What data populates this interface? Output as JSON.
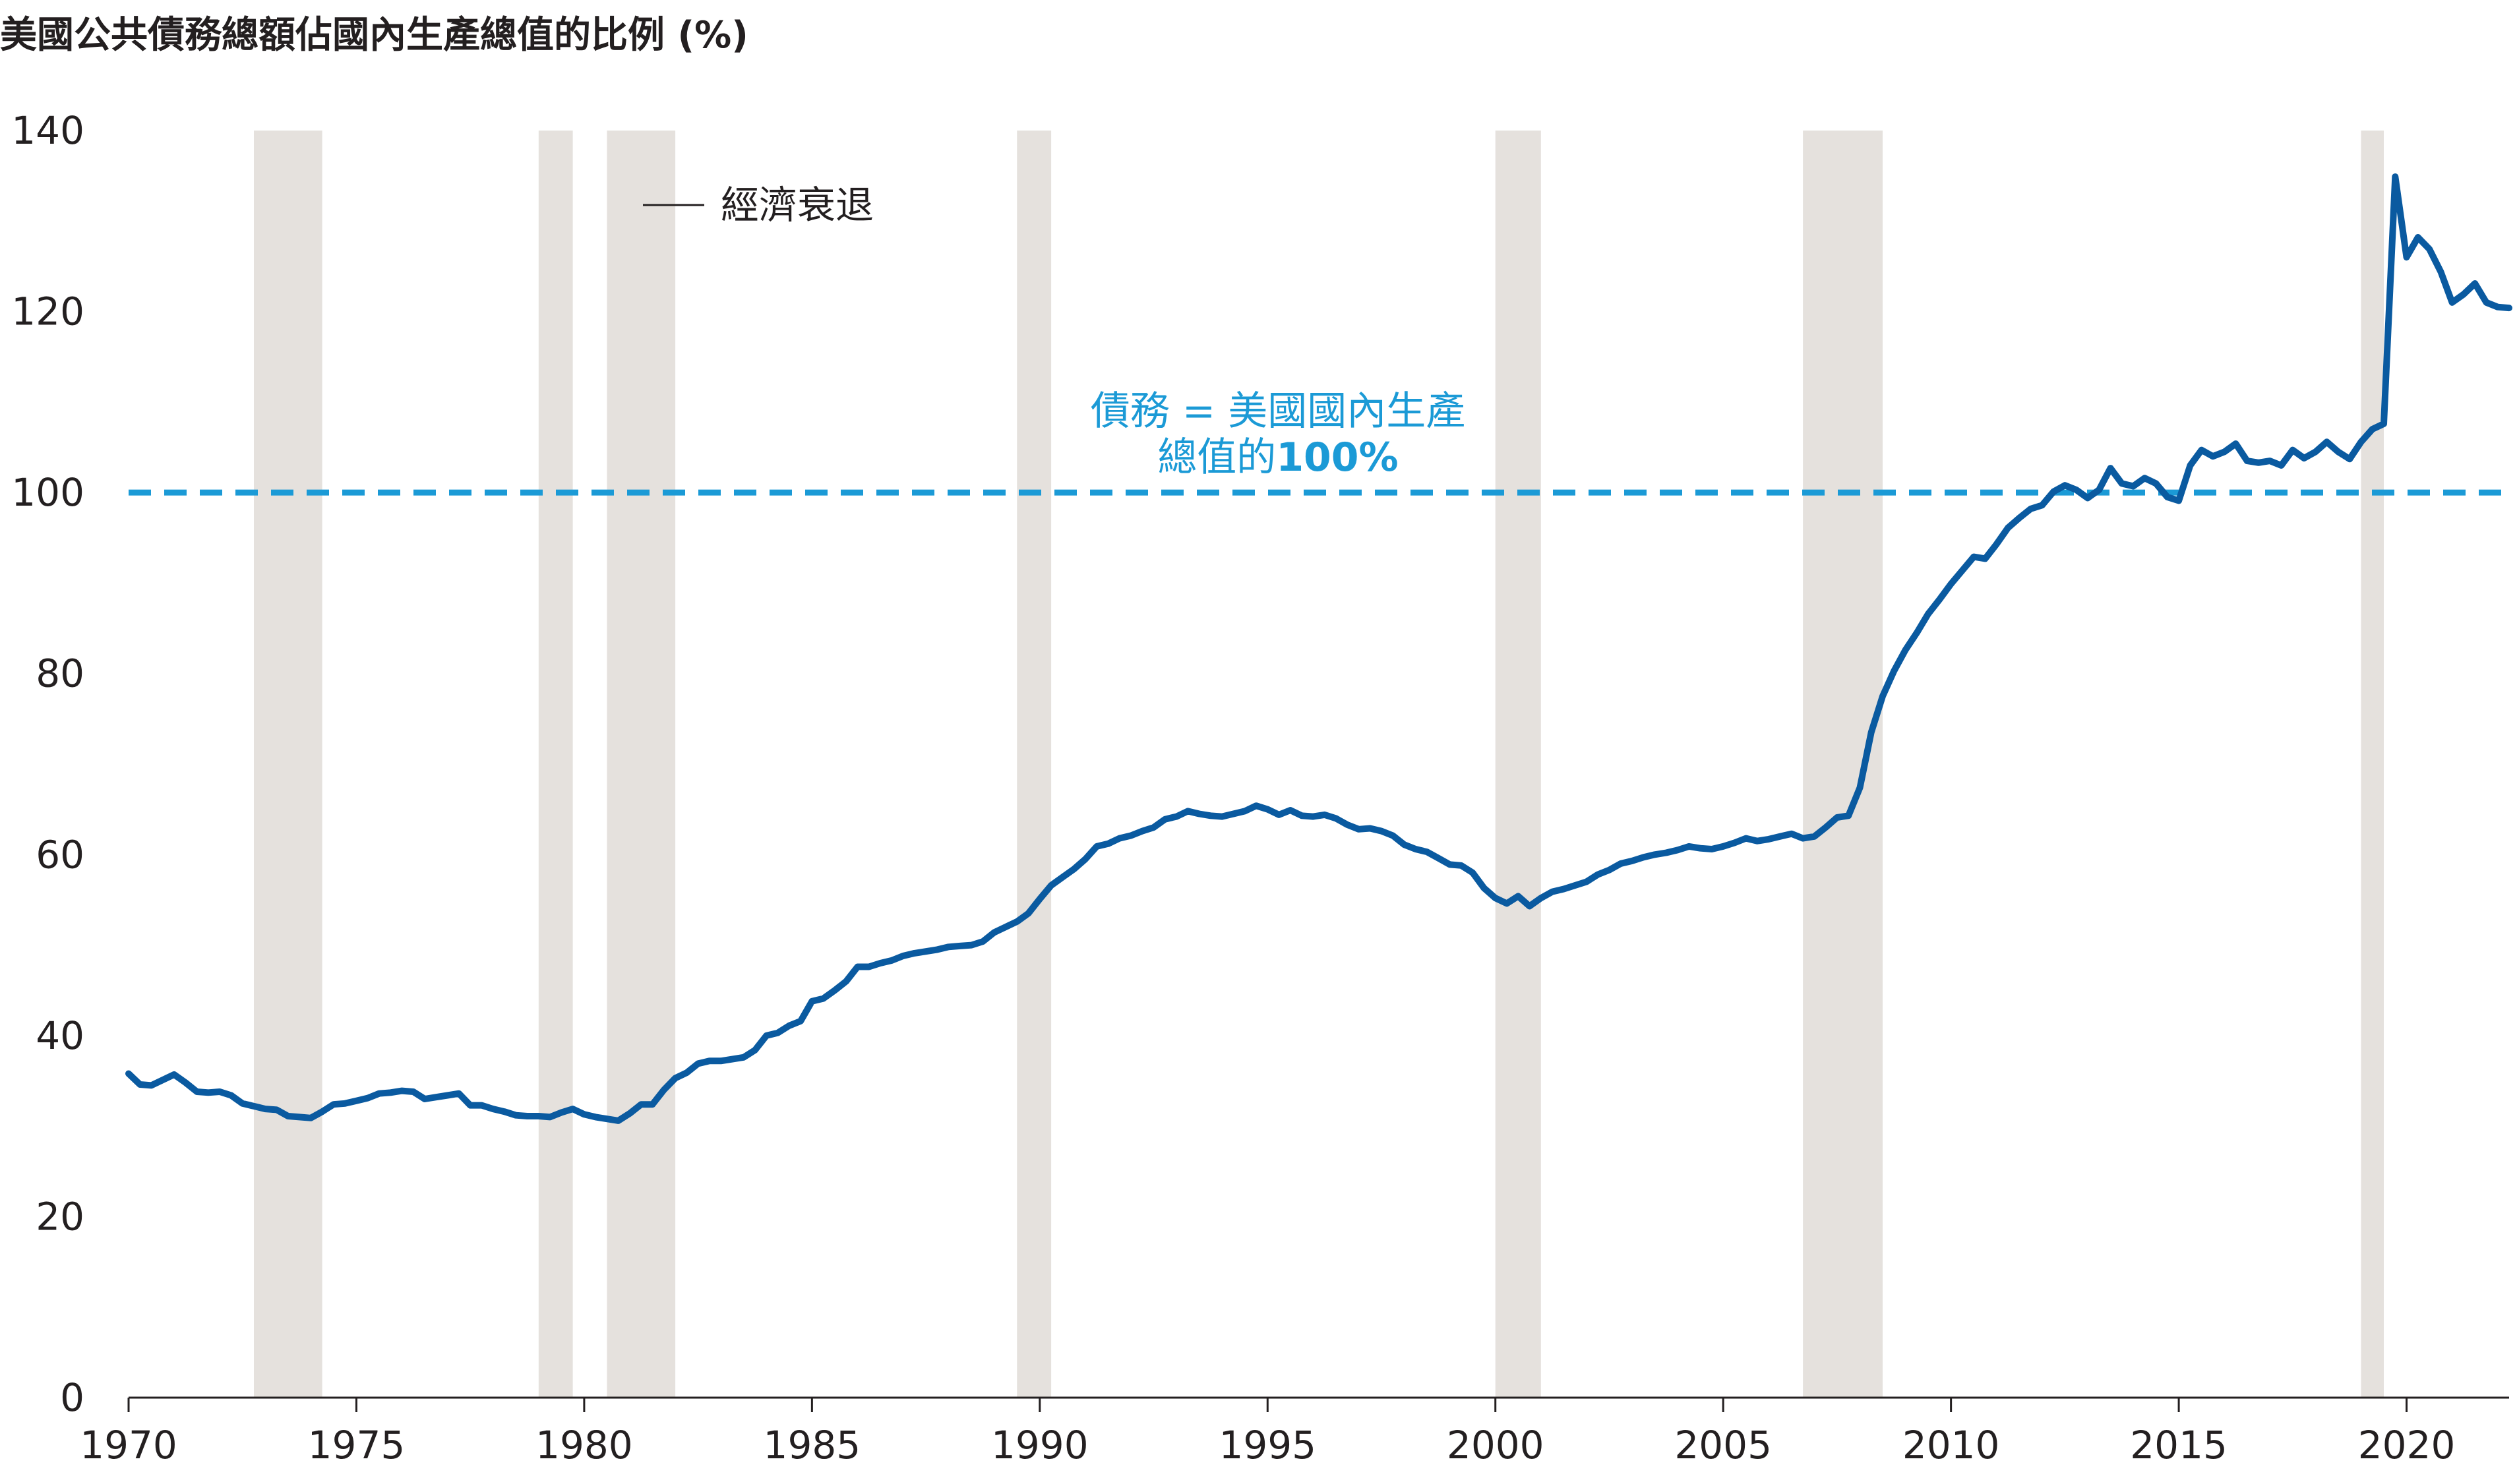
{
  "chart_data": {
    "type": "line",
    "title": "美國公共債務總額佔國內生產總值的比例 (%)",
    "xlabel": "",
    "ylabel": "",
    "xlim": [
      1970,
      2022.25
    ],
    "ylim": [
      0,
      140
    ],
    "yticks": [
      0,
      20,
      40,
      60,
      80,
      100,
      120,
      140
    ],
    "xticks": [
      1970,
      1975,
      1980,
      1985,
      1990,
      1995,
      2000,
      2005,
      2010,
      2015,
      2020
    ],
    "legend": {
      "position": "top-left",
      "entries": [
        {
          "label": "經濟衰退",
          "marker": "line"
        }
      ]
    },
    "recessions": [
      [
        1972.75,
        1974.25
      ],
      [
        1979.0,
        1979.75
      ],
      [
        1980.5,
        1982.0
      ],
      [
        1989.5,
        1990.25
      ],
      [
        2000.0,
        2001.0
      ],
      [
        2006.75,
        2008.5
      ],
      [
        2019.0,
        2019.5
      ]
    ],
    "reference_line": {
      "y": 100,
      "color": "#1b9ad6",
      "label_line1": "債務 = 美國國內生產",
      "label_line2_normal": "總值的",
      "label_line2_bold": "100%"
    },
    "series": [
      {
        "color": "#0a5aa0",
        "x": [
          1970.0,
          1970.25,
          1970.5,
          1970.75,
          1971.0,
          1971.25,
          1971.5,
          1971.75,
          1972.0,
          1972.25,
          1972.5,
          1972.75,
          1973.0,
          1973.25,
          1973.5,
          1973.75,
          1974.0,
          1974.25,
          1974.5,
          1974.75,
          1975.0,
          1975.25,
          1975.5,
          1975.75,
          1976.0,
          1976.25,
          1976.5,
          1976.75,
          1977.0,
          1977.25,
          1977.5,
          1977.75,
          1978.0,
          1978.25,
          1978.5,
          1978.75,
          1979.0,
          1979.25,
          1979.5,
          1979.75,
          1980.0,
          1980.25,
          1980.5,
          1980.75,
          1981.0,
          1981.25,
          1981.5,
          1981.75,
          1982.0,
          1982.25,
          1982.5,
          1982.75,
          1983.0,
          1983.25,
          1983.5,
          1983.75,
          1984.0,
          1984.25,
          1984.5,
          1984.75,
          1985.0,
          1985.25,
          1985.5,
          1985.75,
          1986.0,
          1986.25,
          1986.5,
          1986.75,
          1987.0,
          1987.25,
          1987.5,
          1987.75,
          1988.0,
          1988.25,
          1988.5,
          1988.75,
          1989.0,
          1989.25,
          1989.5,
          1989.75,
          1990.0,
          1990.25,
          1990.5,
          1990.75,
          1991.0,
          1991.25,
          1991.5,
          1991.75,
          1992.0,
          1992.25,
          1992.5,
          1992.75,
          1993.0,
          1993.25,
          1993.5,
          1993.75,
          1994.0,
          1994.25,
          1994.5,
          1994.75,
          1995.0,
          1995.25,
          1995.5,
          1995.75,
          1996.0,
          1996.25,
          1996.5,
          1996.75,
          1997.0,
          1997.25,
          1997.5,
          1997.75,
          1998.0,
          1998.25,
          1998.5,
          1998.75,
          1999.0,
          1999.25,
          1999.5,
          1999.75,
          2000.0,
          2000.25,
          2000.5,
          2000.75,
          2001.0,
          2001.25,
          2001.5,
          2001.75,
          2002.0,
          2002.25,
          2002.5,
          2002.75,
          2003.0,
          2003.25,
          2003.5,
          2003.75,
          2004.0,
          2004.25,
          2004.5,
          2004.75,
          2005.0,
          2005.25,
          2005.5,
          2005.75,
          2006.0,
          2006.25,
          2006.5,
          2006.75,
          2007.0,
          2007.25,
          2007.5,
          2007.75,
          2008.0,
          2008.25,
          2008.5,
          2008.75,
          2009.0,
          2009.25,
          2009.5,
          2009.75,
          2010.0,
          2010.25,
          2010.5,
          2010.75,
          2011.0,
          2011.25,
          2011.5,
          2011.75,
          2012.0,
          2012.25,
          2012.5,
          2012.75,
          2013.0,
          2013.25,
          2013.5,
          2013.75,
          2014.0,
          2014.25,
          2014.5,
          2014.75,
          2015.0,
          2015.25,
          2015.5,
          2015.75,
          2016.0,
          2016.25,
          2016.5,
          2016.75,
          2017.0,
          2017.25,
          2017.5,
          2017.75,
          2018.0,
          2018.25,
          2018.5,
          2018.75,
          2019.0,
          2019.25,
          2019.5,
          2019.75,
          2020.0,
          2020.25,
          2020.5,
          2020.75,
          2021.0,
          2021.25,
          2021.5,
          2021.75,
          2022.0,
          2022.25
        ],
        "y": [
          35.8,
          34.6,
          34.5,
          35.1,
          35.7,
          34.8,
          33.8,
          33.7,
          33.8,
          33.4,
          32.5,
          32.2,
          31.9,
          31.8,
          31.1,
          31.0,
          30.9,
          31.6,
          32.4,
          32.5,
          32.8,
          33.1,
          33.6,
          33.7,
          33.9,
          33.8,
          33.0,
          33.2,
          33.4,
          33.6,
          32.3,
          32.3,
          31.9,
          31.6,
          31.2,
          31.1,
          31.1,
          31.0,
          31.5,
          31.9,
          31.3,
          31.0,
          30.8,
          30.6,
          31.4,
          32.4,
          32.4,
          34.0,
          35.3,
          35.9,
          36.9,
          37.2,
          37.2,
          37.4,
          37.6,
          38.4,
          40.0,
          40.3,
          41.1,
          41.6,
          43.8,
          44.1,
          45.0,
          46.0,
          47.6,
          47.6,
          48.0,
          48.3,
          48.8,
          49.1,
          49.3,
          49.5,
          49.8,
          49.9,
          50.0,
          50.4,
          51.4,
          52.0,
          52.6,
          53.5,
          55.1,
          56.6,
          57.5,
          58.4,
          59.5,
          60.9,
          61.2,
          61.8,
          62.1,
          62.6,
          63.0,
          63.9,
          64.2,
          64.8,
          64.5,
          64.3,
          64.2,
          64.5,
          64.8,
          65.4,
          65.0,
          64.4,
          64.9,
          64.3,
          64.2,
          64.4,
          64.0,
          63.3,
          62.8,
          62.9,
          62.6,
          62.1,
          61.1,
          60.6,
          60.3,
          59.6,
          58.9,
          58.8,
          58.0,
          56.3,
          55.2,
          54.6,
          55.4,
          54.3,
          55.2,
          55.9,
          56.2,
          56.6,
          57.0,
          57.8,
          58.3,
          59.0,
          59.3,
          59.7,
          60.0,
          60.2,
          60.5,
          60.9,
          60.7,
          60.6,
          60.9,
          61.3,
          61.8,
          61.5,
          61.7,
          62.0,
          62.3,
          61.8,
          62.0,
          63.0,
          64.1,
          64.3,
          67.4,
          73.5,
          77.5,
          80.3,
          82.6,
          84.5,
          86.6,
          88.2,
          89.9,
          91.4,
          92.9,
          92.7,
          94.3,
          96.1,
          97.2,
          98.2,
          98.6,
          100.1,
          100.8,
          100.3,
          99.4,
          100.3,
          102.7,
          101.0,
          100.7,
          101.6,
          101.0,
          99.5,
          99.1,
          103.0,
          104.7,
          104.0,
          104.5,
          105.4,
          103.5,
          103.3,
          103.5,
          103.0,
          104.7,
          103.8,
          104.5,
          105.6,
          104.5,
          103.7,
          105.6,
          107.0,
          107.6,
          134.9,
          126.0,
          128.2,
          126.9,
          124.4,
          121.0,
          121.9,
          123.1,
          121.0,
          120.5,
          120.4
        ]
      }
    ]
  }
}
